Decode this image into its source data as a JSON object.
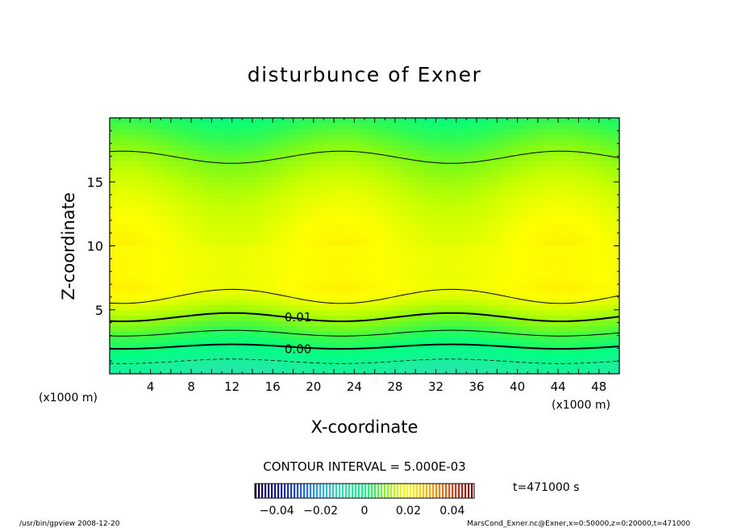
{
  "chart_data": {
    "type": "heatmap",
    "title": "disturbunce of Exner",
    "xlabel": "X-coordinate",
    "ylabel": "Z-coordinate",
    "x_unit_left": "(x1000 m)",
    "x_unit_right": "(x1000 m)",
    "xlim": [
      0,
      50
    ],
    "ylim": [
      0,
      20
    ],
    "x_ticks": [
      4,
      8,
      12,
      16,
      20,
      24,
      28,
      32,
      36,
      40,
      44,
      48
    ],
    "x_tick_labels": [
      "4",
      "8",
      "12",
      "16",
      "20",
      "24",
      "28",
      "32",
      "36",
      "40",
      "44",
      "48"
    ],
    "y_ticks": [
      5,
      10,
      15
    ],
    "y_tick_labels": [
      "5",
      "10",
      "15"
    ],
    "contour_interval_text": "CONTOUR INTERVAL = 5.000E-03",
    "contour_labels": [
      {
        "text": "0.01",
        "x": 17.0,
        "z": 4.3
      },
      {
        "text": "0.00",
        "x": 17.0,
        "z": 1.8
      }
    ],
    "contours": [
      {
        "level": -0.005,
        "style": "dashed",
        "width": 0.8,
        "base": 0.8,
        "amp": 0.35
      },
      {
        "level": 0.0,
        "style": "solid",
        "width": 2.0,
        "base": 1.95,
        "amp": 0.35
      },
      {
        "level": 0.005,
        "style": "solid",
        "width": 1.0,
        "base": 2.95,
        "amp": 0.45
      },
      {
        "level": 0.01,
        "style": "solid",
        "width": 2.0,
        "base": 4.1,
        "amp": 0.65
      },
      {
        "level": 0.015,
        "style": "solid",
        "width": 1.0,
        "base": 5.5,
        "amp": 1.1
      },
      {
        "level": 0.015,
        "style": "solid",
        "width": 1.0,
        "base": 17.4,
        "amp": -0.95
      }
    ],
    "colorbar": {
      "tick_values": [
        -0.04,
        -0.02,
        0,
        0.02,
        0.04
      ],
      "tick_labels": [
        "−0.04",
        "−0.02",
        "0",
        "0.02",
        "0.04"
      ],
      "range": [
        -0.05,
        0.05
      ]
    },
    "time_label": "t=471000 s"
  },
  "footer": {
    "left": "/usr/bin/gpview   2008-12-20",
    "right": "MarsCond_Exner.nc@Exner,x=0:50000,z=0:20000,t=471000"
  }
}
